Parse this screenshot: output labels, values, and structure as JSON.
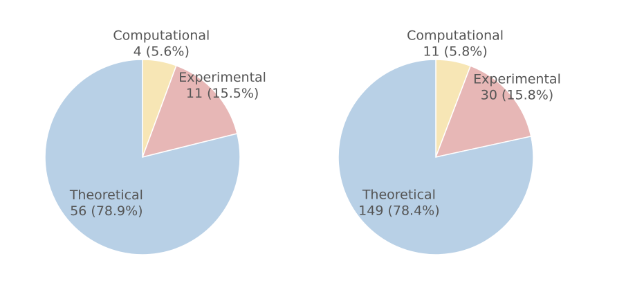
{
  "chart_data": [
    {
      "type": "pie",
      "start_angle_deg": 90,
      "direction": "clockwise",
      "slices": [
        {
          "label": "Computational",
          "value": 4,
          "percent": "5.6%",
          "text": "4 (5.6%)",
          "color": "#f7e6b5"
        },
        {
          "label": "Experimental",
          "value": 11,
          "percent": "15.5%",
          "text": "11 (15.5%)",
          "color": "#e7b7b6"
        },
        {
          "label": "Theoretical",
          "value": 56,
          "percent": "78.9%",
          "text": "56 (78.9%)",
          "color": "#b8d0e6"
        }
      ]
    },
    {
      "type": "pie",
      "start_angle_deg": 90,
      "direction": "clockwise",
      "slices": [
        {
          "label": "Computational",
          "value": 11,
          "percent": "5.8%",
          "text": "11 (5.8%)",
          "color": "#f7e6b5"
        },
        {
          "label": "Experimental",
          "value": 30,
          "percent": "15.8%",
          "text": "30 (15.8%)",
          "color": "#e7b7b6"
        },
        {
          "label": "Theoretical",
          "value": 149,
          "percent": "78.4%",
          "text": "149 (78.4%)",
          "color": "#b8d0e6"
        }
      ]
    }
  ]
}
